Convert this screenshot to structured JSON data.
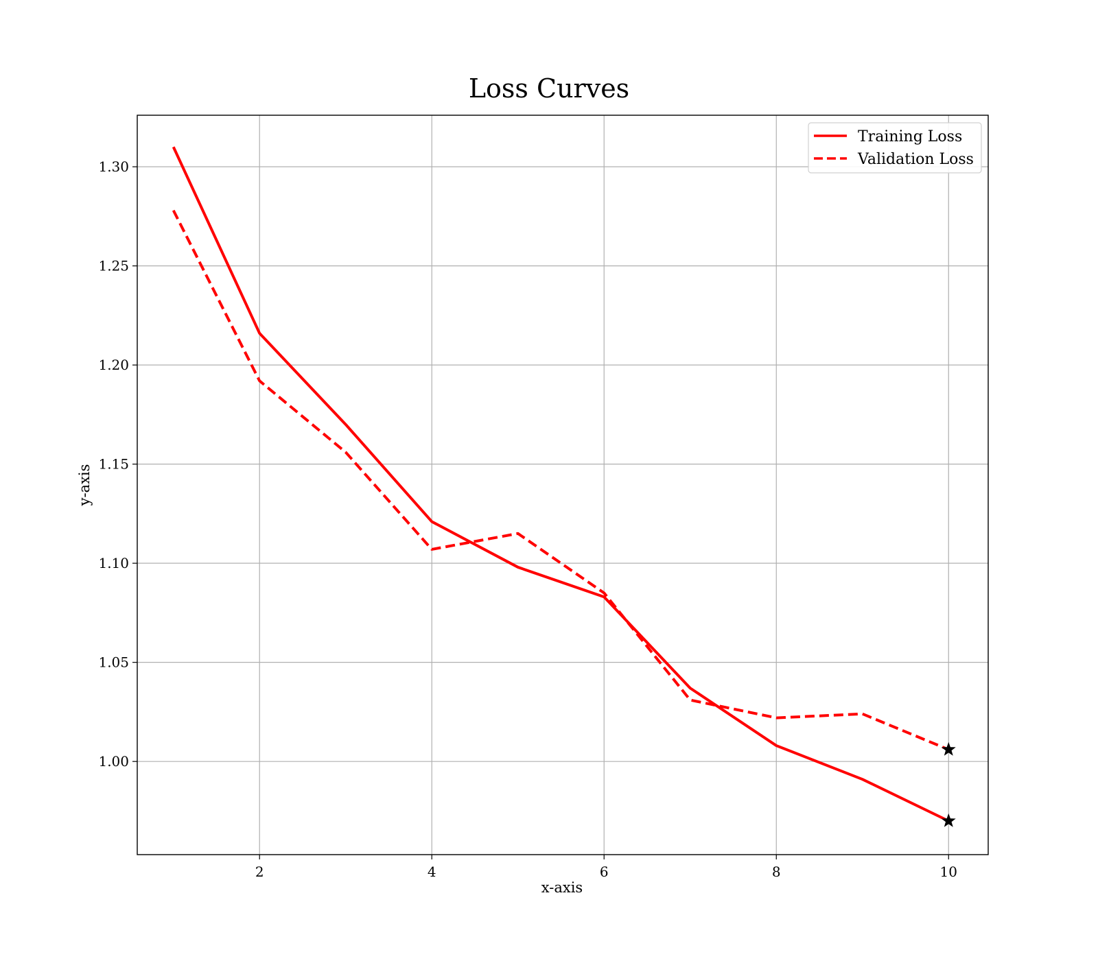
{
  "chart_data": {
    "type": "line",
    "title": "Loss Curves",
    "xlabel": "x-axis",
    "ylabel": "y-axis",
    "xlim": [
      0.58,
      10.46
    ],
    "ylim": [
      0.953,
      1.326
    ],
    "xticks": [
      2,
      4,
      6,
      8,
      10
    ],
    "xtick_labels": [
      "2",
      "4",
      "6",
      "8",
      "10"
    ],
    "yticks": [
      1.0,
      1.05,
      1.1,
      1.15,
      1.2,
      1.25,
      1.3
    ],
    "ytick_labels": [
      "1.00",
      "1.05",
      "1.10",
      "1.15",
      "1.20",
      "1.25",
      "1.30"
    ],
    "grid": true,
    "legend_position": "top-right",
    "x": [
      1,
      2,
      3,
      4,
      5,
      6,
      7,
      8,
      9,
      10
    ],
    "series": [
      {
        "name": "Training Loss",
        "color": "#ff0000",
        "line_style": "solid",
        "values": [
          1.31,
          1.216,
          1.17,
          1.121,
          1.098,
          1.083,
          1.037,
          1.008,
          0.991,
          0.97
        ]
      },
      {
        "name": "Validation Loss",
        "color": "#ff0000",
        "line_style": "dashed",
        "values": [
          1.278,
          1.192,
          1.156,
          1.107,
          1.115,
          1.085,
          1.031,
          1.022,
          1.024,
          1.006
        ]
      }
    ],
    "end_markers": {
      "icon": "star-icon",
      "color": "#000000",
      "x": 10,
      "values": [
        0.97,
        1.006
      ]
    }
  }
}
